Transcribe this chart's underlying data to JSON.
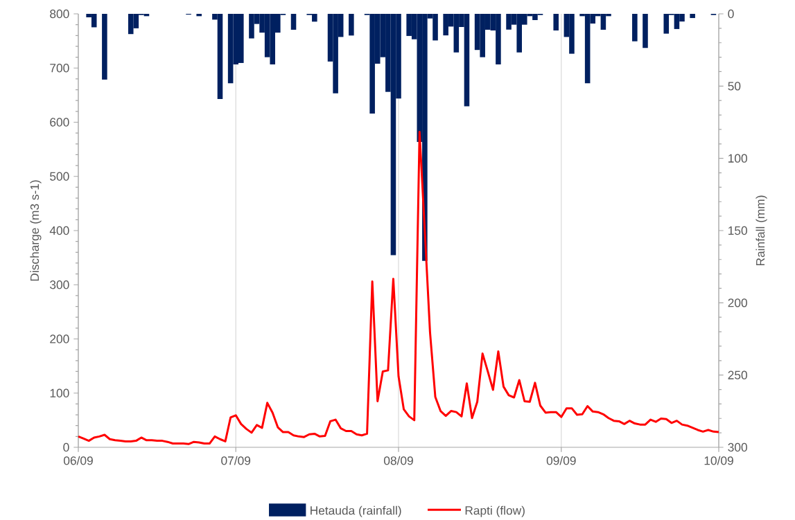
{
  "chart_data": {
    "type": "bar",
    "categories": [
      "06/09",
      null,
      null,
      null,
      null,
      null,
      null,
      null,
      null,
      null,
      null,
      null,
      null,
      null,
      null,
      null,
      null,
      null,
      null,
      null,
      null,
      null,
      null,
      null,
      null,
      null,
      null,
      null,
      null,
      null,
      "07/09",
      null,
      null,
      null,
      null,
      null,
      null,
      null,
      null,
      null,
      null,
      null,
      null,
      null,
      null,
      null,
      null,
      null,
      null,
      null,
      null,
      null,
      null,
      null,
      null,
      null,
      null,
      null,
      null,
      null,
      null,
      "08/09",
      null,
      null,
      null,
      null,
      null,
      null,
      null,
      null,
      null,
      null,
      null,
      null,
      null,
      null,
      null,
      null,
      null,
      null,
      null,
      null,
      null,
      null,
      null,
      null,
      null,
      null,
      null,
      null,
      null,
      null,
      "09/09",
      null,
      null,
      null,
      null,
      null,
      null,
      null,
      null,
      null,
      null,
      null,
      null,
      null,
      null,
      null,
      null,
      null,
      null,
      null,
      null,
      null,
      null,
      null,
      null,
      null,
      null,
      null,
      null,
      null,
      "10/09"
    ],
    "ylabel": "Discharge (m3 s-1)",
    "y2label": "Rainfall (mm)",
    "ylim": [
      0,
      800
    ],
    "yticks": [
      0,
      100,
      200,
      300,
      400,
      500,
      600,
      700,
      800
    ],
    "y2lim": [
      300,
      0
    ],
    "y2ticks": [
      0,
      50,
      100,
      150,
      200,
      250,
      300
    ],
    "grid": "x",
    "legend": "bottom",
    "series": [
      {
        "name": "Hetauda (rainfall)",
        "axis": "y2",
        "color": "#002060",
        "values": [
          null,
          null,
          2.4,
          9.3,
          null,
          45.5,
          null,
          null,
          null,
          null,
          14,
          10,
          0.8,
          1.6,
          null,
          null,
          null,
          null,
          null,
          null,
          null,
          0.5,
          null,
          1.6,
          null,
          null,
          4,
          59,
          null,
          48,
          35,
          34,
          null,
          17,
          7,
          13,
          30,
          35,
          13,
          0.8,
          null,
          11,
          null,
          null,
          0.8,
          5.4,
          null,
          null,
          33,
          55,
          16,
          null,
          15,
          null,
          null,
          0.8,
          69,
          34.5,
          30,
          54,
          167,
          58.6,
          null,
          15.3,
          17.6,
          88.6,
          171,
          3.2,
          18.4,
          null,
          14.9,
          8.8,
          26.7,
          9.1,
          64,
          null,
          25,
          30,
          11,
          11.5,
          35,
          null,
          10.9,
          7.5,
          26.7,
          7.5,
          1.6,
          4.3,
          0.8,
          null,
          null,
          11.5,
          null,
          16,
          27.6,
          null,
          1.6,
          48,
          6.7,
          1.6,
          11,
          1.6,
          null,
          null,
          null,
          null,
          19,
          null,
          23.6,
          null,
          null,
          null,
          13.7,
          0.8,
          10.5,
          5.3,
          null,
          2.9,
          null,
          null,
          null,
          0.8,
          null
        ]
      },
      {
        "name": "Rapti (flow)",
        "type": "line",
        "color": "#ff0000",
        "values": [
          20,
          16,
          12,
          18,
          20,
          23,
          15,
          13,
          12,
          11,
          11,
          12,
          18,
          13,
          13,
          12,
          12,
          10,
          7,
          7,
          7,
          6,
          10,
          9,
          7,
          7,
          20,
          15,
          11,
          55,
          59,
          43,
          34,
          27,
          41,
          36,
          82,
          64,
          37,
          28,
          28,
          22,
          20,
          19,
          24,
          25,
          20,
          21,
          48,
          51,
          35,
          30,
          30,
          24,
          22,
          25,
          306,
          85,
          140,
          142,
          311,
          131,
          70,
          57,
          50,
          582,
          400,
          212,
          93,
          67,
          58,
          67,
          65,
          57,
          118,
          54,
          84,
          173,
          140,
          106,
          177,
          112,
          96,
          92,
          124,
          85,
          84,
          119,
          77,
          64,
          65,
          65,
          56,
          72,
          72,
          60,
          61,
          76,
          66,
          65,
          61,
          54,
          49,
          48,
          43,
          49,
          44,
          42,
          42,
          51,
          47,
          53,
          52,
          45,
          49,
          42,
          40,
          36,
          32,
          29,
          32,
          29,
          28
        ]
      }
    ]
  }
}
